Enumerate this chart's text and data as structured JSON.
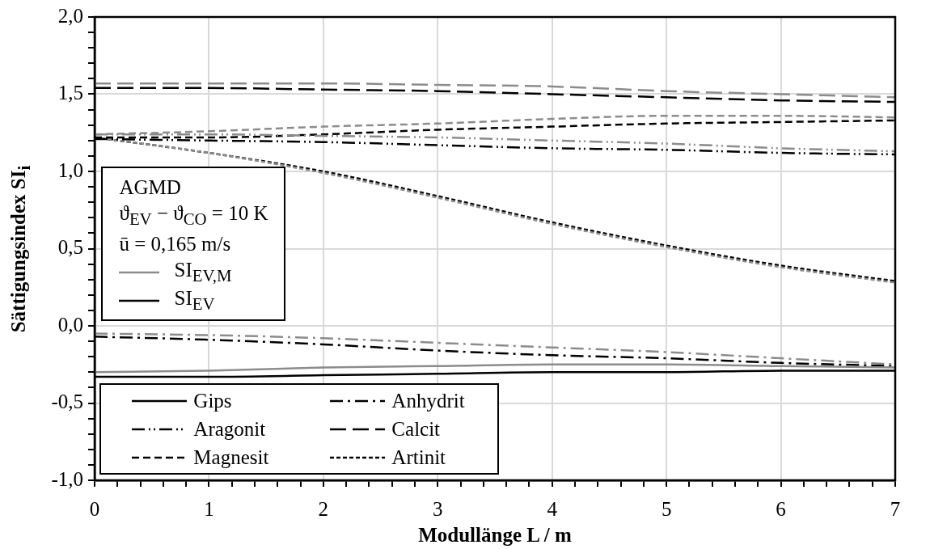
{
  "chart_data": {
    "type": "line",
    "xlabel": "Modullänge L / m",
    "ylabel": "Sättigungsindex SI$_{i}$",
    "x": [
      0,
      1,
      2,
      3,
      4,
      5,
      6,
      7
    ],
    "xlim": [
      0,
      7
    ],
    "xticks": [
      0,
      {
        "value": 0.2,
        "label": null
      },
      {
        "value": 0.4,
        "label": null
      },
      {
        "value": 0.6,
        "label": null
      },
      {
        "value": 0.8,
        "label": null
      },
      1,
      {
        "value": 1.2,
        "label": null
      },
      {
        "value": 1.4,
        "label": null
      },
      {
        "value": 1.6,
        "label": null
      },
      {
        "value": 1.8,
        "label": null
      },
      2,
      {
        "value": 2.2,
        "label": null
      },
      {
        "value": 2.4,
        "label": null
      },
      {
        "value": 2.6,
        "label": null
      },
      {
        "value": 2.8,
        "label": null
      },
      3,
      {
        "value": 3.2,
        "label": null
      },
      {
        "value": 3.4,
        "label": null
      },
      {
        "value": 3.6,
        "label": null
      },
      {
        "value": 3.8,
        "label": null
      },
      4,
      {
        "value": 4.2,
        "label": null
      },
      {
        "value": 4.4,
        "label": null
      },
      {
        "value": 4.6,
        "label": null
      },
      {
        "value": 4.8,
        "label": null
      },
      5,
      {
        "value": 5.2,
        "label": null
      },
      {
        "value": 5.4,
        "label": null
      },
      {
        "value": 5.6,
        "label": null
      },
      {
        "value": 5.8,
        "label": null
      },
      6,
      {
        "value": 6.2,
        "label": null
      },
      {
        "value": 6.4,
        "label": null
      },
      {
        "value": 6.6,
        "label": null
      },
      {
        "value": 6.8,
        "label": null
      },
      7
    ],
    "ylim": [
      -1,
      2
    ],
    "yticks": [
      {
        "value": -1,
        "label": "-1,0"
      },
      {
        "value": -0.9,
        "label": null
      },
      {
        "value": -0.8,
        "label": null
      },
      {
        "value": -0.7,
        "label": null
      },
      {
        "value": -0.6,
        "label": null
      },
      {
        "value": -0.5,
        "label": "-0,5"
      },
      {
        "value": -0.4,
        "label": null
      },
      {
        "value": -0.3,
        "label": null
      },
      {
        "value": -0.2,
        "label": null
      },
      {
        "value": -0.1,
        "label": null
      },
      {
        "value": 0,
        "label": "0,0"
      },
      {
        "value": 0.1,
        "label": null
      },
      {
        "value": 0.2,
        "label": null
      },
      {
        "value": 0.3,
        "label": null
      },
      {
        "value": 0.4,
        "label": null
      },
      {
        "value": 0.5,
        "label": "0,5"
      },
      {
        "value": 0.6,
        "label": null
      },
      {
        "value": 0.7,
        "label": null
      },
      {
        "value": 0.8,
        "label": null
      },
      {
        "value": 0.9,
        "label": null
      },
      {
        "value": 1,
        "label": "1,0"
      },
      {
        "value": 1.1,
        "label": null
      },
      {
        "value": 1.2,
        "label": null
      },
      {
        "value": 1.3,
        "label": null
      },
      {
        "value": 1.4,
        "label": null
      },
      {
        "value": 1.5,
        "label": "1,5"
      },
      {
        "value": 1.6,
        "label": null
      },
      {
        "value": 1.7,
        "label": null
      },
      {
        "value": 1.8,
        "label": null
      },
      {
        "value": 1.9,
        "label": null
      },
      {
        "value": 2,
        "label": "2,0"
      }
    ],
    "grid": true,
    "legend": "bottom left",
    "marker": "none",
    "annotations": [
      "AGMD",
      "ϑ$_{EV}$ − ϑ$_{CO}$ = 10 K",
      "ū = 0,165 m/s",
      "SI$_{EV,M}$",
      "SI$_{EV}$"
    ],
    "series": [
      {
        "color": "#8c8c8c",
        "line_style": "solid",
        "values": [
          -0.3,
          -0.29,
          -0.27,
          -0.26,
          -0.25,
          -0.25,
          -0.26,
          -0.27
        ]
      },
      {
        "name": "Gips",
        "color": "#000000",
        "line_style": "solid",
        "values": [
          -0.33,
          -0.33,
          -0.32,
          -0.31,
          -0.3,
          -0.3,
          -0.29,
          -0.29
        ]
      },
      {
        "color": "#8c8c8c",
        "line_style": "dashdot",
        "values": [
          -0.05,
          -0.06,
          -0.08,
          -0.11,
          -0.14,
          -0.17,
          -0.21,
          -0.25
        ]
      },
      {
        "name": "Anhydrit",
        "color": "#000000",
        "line_style": "dashdot",
        "values": [
          -0.07,
          -0.09,
          -0.12,
          -0.16,
          -0.19,
          -0.21,
          -0.24,
          -0.26
        ]
      },
      {
        "color": "#8c8c8c",
        "line_style": "dashdotdot",
        "values": [
          1.24,
          1.24,
          1.23,
          1.22,
          1.2,
          1.18,
          1.15,
          1.13
        ]
      },
      {
        "name": "Aragonit",
        "color": "#000000",
        "line_style": "dashdotdot",
        "values": [
          1.21,
          1.2,
          1.19,
          1.17,
          1.15,
          1.14,
          1.12,
          1.11
        ]
      },
      {
        "color": "#8c8c8c",
        "line_style": "longdash",
        "values": [
          1.57,
          1.57,
          1.57,
          1.56,
          1.55,
          1.52,
          1.5,
          1.48
        ]
      },
      {
        "name": "Calcit",
        "color": "#000000",
        "line_style": "longdash",
        "values": [
          1.54,
          1.54,
          1.53,
          1.52,
          1.5,
          1.48,
          1.46,
          1.45
        ]
      },
      {
        "color": "#8c8c8c",
        "line_style": "dashed",
        "values": [
          1.24,
          1.26,
          1.29,
          1.31,
          1.34,
          1.36,
          1.36,
          1.35
        ]
      },
      {
        "name": "Magnesit",
        "color": "#000000",
        "line_style": "dashed",
        "values": [
          1.22,
          1.22,
          1.24,
          1.27,
          1.29,
          1.31,
          1.32,
          1.33
        ]
      },
      {
        "color": "#8c8c8c",
        "line_style": "dotted",
        "values": [
          1.22,
          1.12,
          0.99,
          0.83,
          0.66,
          0.51,
          0.38,
          0.28
        ]
      },
      {
        "name": "Artinit",
        "color": "#000000",
        "line_style": "dotted",
        "values": [
          1.22,
          1.12,
          1.0,
          0.84,
          0.67,
          0.52,
          0.39,
          0.29
        ]
      }
    ]
  }
}
